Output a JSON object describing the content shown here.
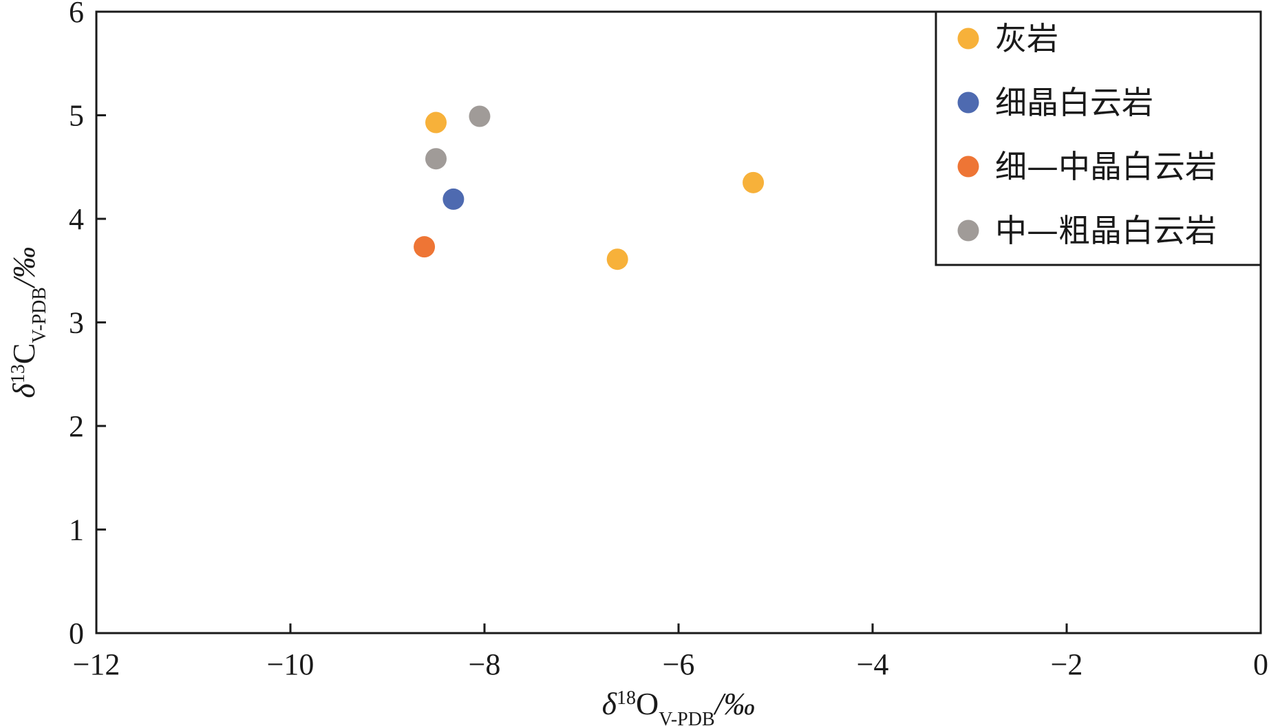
{
  "chart_data": {
    "type": "scatter",
    "title": "",
    "xlabel": {
      "parts": [
        {
          "t": "δ",
          "style": "italic"
        },
        {
          "t": "18",
          "style": "sup"
        },
        {
          "t": "O",
          "style": "normal"
        },
        {
          "t": "V-PDB",
          "style": "sub"
        },
        {
          "t": "/‰",
          "style": "italic"
        }
      ]
    },
    "ylabel": {
      "parts": [
        {
          "t": "δ",
          "style": "italic"
        },
        {
          "t": "13",
          "style": "sup"
        },
        {
          "t": "C",
          "style": "normal"
        },
        {
          "t": "V-PDB",
          "style": "sub"
        },
        {
          "t": "/‰",
          "style": "italic"
        }
      ]
    },
    "xlim": [
      -12,
      0
    ],
    "ylim": [
      0,
      6
    ],
    "xticks": [
      -12,
      -10,
      -8,
      -6,
      -4,
      -2,
      0
    ],
    "yticks": [
      0,
      1,
      2,
      3,
      4,
      5,
      6
    ],
    "xtick_labels": [
      "−12",
      "−10",
      "−8",
      "−6",
      "−4",
      "−2",
      "0"
    ],
    "ytick_labels": [
      "0",
      "1",
      "2",
      "3",
      "4",
      "5",
      "6"
    ],
    "grid": false,
    "legend_position": "top-right",
    "series": [
      {
        "name": "灰岩",
        "color": "#f7b13a",
        "points": [
          [
            -8.5,
            4.93
          ],
          [
            -6.63,
            3.61
          ],
          [
            -5.23,
            4.35
          ]
        ]
      },
      {
        "name": "细晶白云岩",
        "color": "#4e6ab0",
        "points": [
          [
            -8.32,
            4.19
          ]
        ]
      },
      {
        "name": "细—中晶白云岩",
        "color": "#ee7535",
        "points": [
          [
            -8.62,
            3.73
          ]
        ]
      },
      {
        "name": "中—粗晶白云岩",
        "color": "#a09b98",
        "points": [
          [
            -8.5,
            4.58
          ],
          [
            -8.05,
            4.99
          ]
        ]
      }
    ]
  }
}
